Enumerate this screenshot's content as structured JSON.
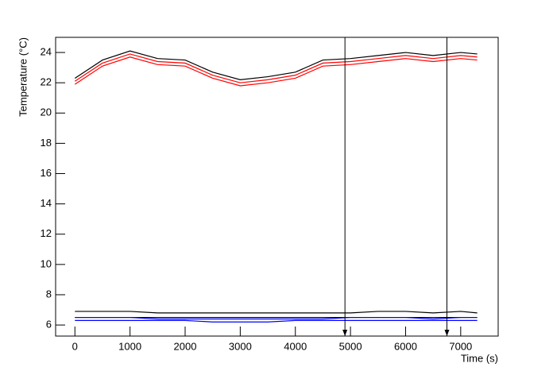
{
  "chart_data": {
    "type": "line",
    "xlabel": "Time (s)",
    "ylabel": "Temperature (°C)",
    "x": [
      0,
      500,
      1000,
      1500,
      2000,
      2500,
      3000,
      3500,
      4000,
      4500,
      5000,
      5500,
      6000,
      6500,
      7000,
      7300
    ],
    "series": [
      {
        "color": "#000000",
        "values": [
          22.3,
          23.5,
          24.1,
          23.6,
          23.5,
          22.7,
          22.2,
          22.4,
          22.7,
          23.5,
          23.6,
          23.8,
          24.0,
          23.8,
          24.0,
          23.9
        ]
      },
      {
        "color": "#ff0000",
        "values": [
          22.1,
          23.3,
          23.9,
          23.4,
          23.3,
          22.5,
          22.0,
          22.2,
          22.5,
          23.3,
          23.4,
          23.6,
          23.8,
          23.6,
          23.8,
          23.7
        ]
      },
      {
        "color": "#ff0000",
        "values": [
          21.9,
          23.1,
          23.7,
          23.2,
          23.1,
          22.3,
          21.8,
          22.0,
          22.3,
          23.1,
          23.2,
          23.4,
          23.6,
          23.4,
          23.6,
          23.5
        ]
      },
      {
        "color": "#000000",
        "values": [
          6.9,
          6.9,
          6.9,
          6.8,
          6.8,
          6.8,
          6.8,
          6.8,
          6.8,
          6.8,
          6.8,
          6.9,
          6.9,
          6.8,
          6.9,
          6.8
        ]
      },
      {
        "color": "#000000",
        "values": [
          6.5,
          6.5,
          6.5,
          6.5,
          6.5,
          6.5,
          6.5,
          6.5,
          6.5,
          6.5,
          6.5,
          6.5,
          6.5,
          6.5,
          6.5,
          6.5
        ]
      },
      {
        "color": "#0000ff",
        "values": [
          6.5,
          6.5,
          6.5,
          6.4,
          6.4,
          6.4,
          6.4,
          6.4,
          6.4,
          6.4,
          6.5,
          6.5,
          6.5,
          6.4,
          6.5,
          6.5
        ]
      },
      {
        "color": "#0000ff",
        "values": [
          6.3,
          6.3,
          6.3,
          6.3,
          6.3,
          6.2,
          6.2,
          6.2,
          6.3,
          6.3,
          6.3,
          6.3,
          6.3,
          6.3,
          6.3,
          6.3
        ]
      }
    ],
    "arrows_x": [
      4900,
      6750
    ],
    "xlim": [
      -350,
      7680
    ],
    "ylim": [
      5.27,
      25
    ],
    "xticks": [
      0,
      1000,
      2000,
      3000,
      4000,
      5000,
      6000,
      7000
    ],
    "yticks": [
      6,
      8,
      10,
      12,
      14,
      16,
      18,
      20,
      22,
      24
    ],
    "grid": false
  }
}
